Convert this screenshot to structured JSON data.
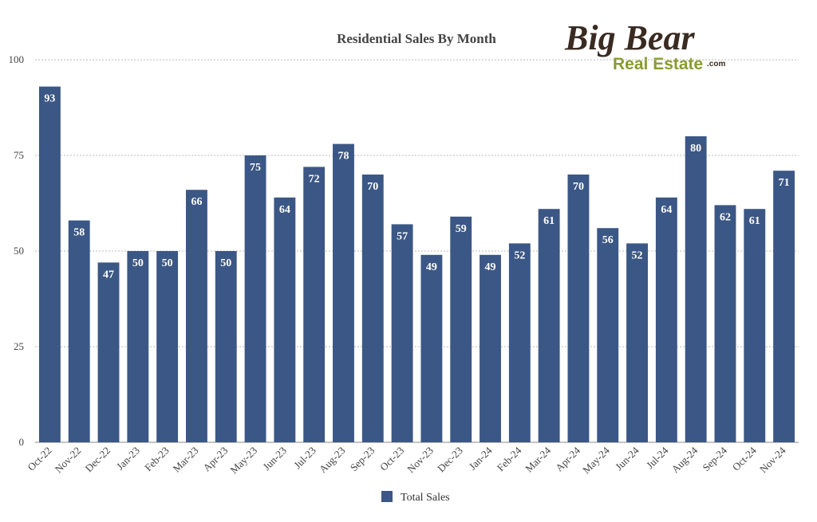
{
  "logo": {
    "line1": "Big Bear",
    "line2": "Real Estate",
    "suffix": ".com"
  },
  "chart_data": {
    "type": "bar",
    "title": "Residential Sales By Month",
    "xlabel": "",
    "ylabel": "",
    "ylim": [
      0,
      100
    ],
    "yticks": [
      0,
      25,
      50,
      75,
      100
    ],
    "grid": true,
    "legend_position": "bottom",
    "categories": [
      "Oct-22",
      "Nov-22",
      "Dec-22",
      "Jan-23",
      "Feb-23",
      "Mar-23",
      "Apr-23",
      "May-23",
      "Jun-23",
      "Jul-23",
      "Aug-23",
      "Sep-23",
      "Oct-23",
      "Nov-23",
      "Dec-23",
      "Jan-24",
      "Feb-24",
      "Mar-24",
      "Apr-24",
      "May-24",
      "Jun-24",
      "Jul-24",
      "Aug-24",
      "Sep-24",
      "Oct-24",
      "Nov-24"
    ],
    "series": [
      {
        "name": "Total Sales",
        "color": "#3b5785",
        "values": [
          93,
          58,
          47,
          50,
          50,
          66,
          50,
          75,
          64,
          72,
          78,
          70,
          57,
          49,
          59,
          49,
          52,
          61,
          70,
          56,
          52,
          64,
          80,
          62,
          61,
          71
        ]
      }
    ]
  }
}
